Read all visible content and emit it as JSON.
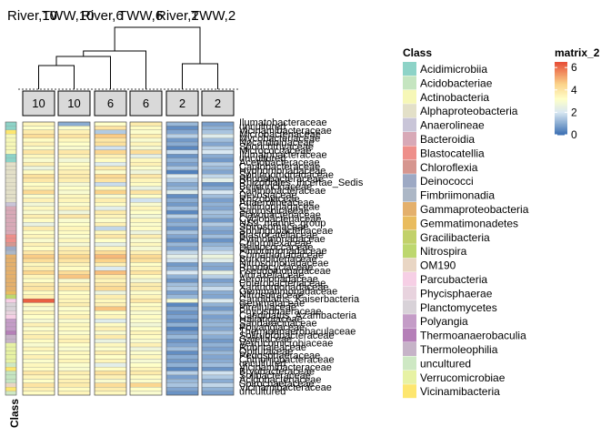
{
  "chart_data": {
    "type": "heatmap",
    "column_titles": [
      "River,10",
      "TWW,10",
      "River,6",
      "TWW,6",
      "River,2",
      "TWW,2"
    ],
    "column_clusters": [
      "10",
      "10",
      "6",
      "6",
      "2",
      "2"
    ],
    "row_annotation_label": "Class",
    "class_legend": {
      "title": "Class",
      "entries": [
        {
          "name": "Acidimicrobiia",
          "color": "#8DD3C7"
        },
        {
          "name": "Acidobacteriae",
          "color": "#C5E5C0"
        },
        {
          "name": "Actinobacteria",
          "color": "#F6F7B7"
        },
        {
          "name": "Alphaproteobacteria",
          "color": "#E3E0C8"
        },
        {
          "name": "Anaerolineae",
          "color": "#C9C5D8"
        },
        {
          "name": "Bacteroidia",
          "color": "#D8A9B7"
        },
        {
          "name": "Blastocatellia",
          "color": "#EE8F8A"
        },
        {
          "name": "Chloroflexia",
          "color": "#D6968F"
        },
        {
          "name": "Deinococci",
          "color": "#9DA9C4"
        },
        {
          "name": "Fimbriimonadia",
          "color": "#ACB7C6"
        },
        {
          "name": "Gammaproteobacteria",
          "color": "#E4B06C"
        },
        {
          "name": "Gemmatimonadetes",
          "color": "#E9BC5E"
        },
        {
          "name": "Gracilibacteria",
          "color": "#C2D16A"
        },
        {
          "name": "Nitrospira",
          "color": "#BDD76E"
        },
        {
          "name": "OM190",
          "color": "#E9D6C4"
        },
        {
          "name": "Parcubacteria",
          "color": "#F6CFE5"
        },
        {
          "name": "Phycisphaerae",
          "color": "#E8D3DE"
        },
        {
          "name": "Planctomycetes",
          "color": "#D8D2D8"
        },
        {
          "name": "Polyangia",
          "color": "#C49CC7"
        },
        {
          "name": "Thermoanaerobaculia",
          "color": "#B57FB8"
        },
        {
          "name": "Thermoleophilia",
          "color": "#C6B3C8"
        },
        {
          "name": "uncultured",
          "color": "#CEE8C4"
        },
        {
          "name": "Verrucomicrobiae",
          "color": "#E7F2A4"
        },
        {
          "name": "Vicinamibacteria",
          "color": "#FDE66F"
        }
      ]
    },
    "color_scale": {
      "title": "matrix_2",
      "min": 0,
      "max": 6.5,
      "ticks": [
        0,
        2,
        4,
        6
      ],
      "stops": [
        {
          "value": 0,
          "color": "#3A6FB2"
        },
        {
          "value": 2,
          "color": "#D9E8F2"
        },
        {
          "value": 3.2,
          "color": "#FFFFC8"
        },
        {
          "value": 4.5,
          "color": "#FBD38A"
        },
        {
          "value": 6.5,
          "color": "#E64B35"
        }
      ]
    },
    "row_labels": [
      "Ilumatobacteraceae",
      "uncultured",
      "Vicinamibacteraceae",
      "Microbacteriaceae",
      "Mycobacteriaceae",
      "Nocardioidaceae",
      "Sporichthyaceae",
      "Micrococcaceae",
      "Ilumatobacteraceae",
      "uncultured",
      "Acetobacteraceae",
      "Caulobacteraceae",
      "Hyphomonadaceae",
      "Sphingomonadaceae",
      "Rhodobacteraceae",
      "Rhizobiales_Incertae_Sedis",
      "Beijerinckiaceae",
      "Xanthobacteraceae",
      "Devosiaceae",
      "Rhizobiaceae",
      "Anaerolineaceae",
      "Chitinophagaceae",
      "Saprospiraceae",
      "Flavobacteriaceae",
      "Cyclobacteriaceae",
      "NS9_marine_group",
      "Spirosomaceae",
      "Sphingobacteriaceae",
      "Blastocatellaceae",
      "Pyrinomonadaceae",
      "Chloroflexaceae",
      "Deinococcaceae",
      "Fimbriimonadaceae",
      "Comamonadaceae",
      "Burkholderiaceae",
      "Nitrosomonadaceae",
      "Rhodocyclaceae",
      "Pseudomonadaceae",
      "Moraxellaceae",
      "Aeromonadaceae",
      "Enterobacteriaceae",
      "Xanthomonadaceae",
      "Gemmatimonadaceae",
      "Nitrospiraceae",
      "Candidatus_Kaiserbacteria",
      "Gemmataceae",
      "Pirellulaceae",
      "Phycisphaeraceae",
      "Candidatus_Azambacteria",
      "Haliangiaceae",
      "Sandaracinaceae",
      "Polyangiaceae",
      "Thermoanaerobaculaceae",
      "Solirubrobacteraceae",
      "Gaiellaceae",
      "Verrucomicrobiaceae",
      "Rubritaleaceae",
      "Opitutaceae",
      "Pedosphaeraceae",
      "Chthoniobacteraceae",
      "uncultured",
      "Vicinamibacteraceae",
      "Bryobacteraceae",
      "Solibacteraceae",
      "Acidobacteriaceae",
      "Spirochaetaceae",
      "Vicinamibacteraceae",
      "uncultured"
    ],
    "row_class_index": [
      0,
      0,
      23,
      2,
      2,
      2,
      2,
      2,
      0,
      0,
      3,
      3,
      3,
      3,
      3,
      3,
      3,
      3,
      3,
      3,
      4,
      5,
      5,
      5,
      5,
      5,
      5,
      5,
      6,
      6,
      7,
      8,
      9,
      10,
      10,
      10,
      10,
      10,
      10,
      10,
      10,
      10,
      11,
      13,
      15,
      17,
      17,
      16,
      15,
      18,
      18,
      18,
      19,
      20,
      20,
      22,
      22,
      22,
      22,
      22,
      21,
      23,
      1,
      1,
      1,
      14,
      23,
      21
    ],
    "values": [
      [
        3.5,
        1.0,
        3.2,
        3.8,
        1.2,
        0.8
      ],
      [
        3.2,
        3.1,
        4.0,
        3.3,
        0.5,
        1.1
      ],
      [
        3.8,
        3.6,
        1.5,
        3.1,
        0.9,
        1.4
      ],
      [
        4.2,
        4.0,
        4.6,
        3.7,
        1.6,
        2.2
      ],
      [
        3.3,
        3.4,
        3.9,
        3.0,
        0.7,
        1.3
      ],
      [
        3.6,
        3.2,
        4.1,
        3.5,
        1.0,
        0.9
      ],
      [
        3.1,
        3.0,
        1.9,
        2.9,
        0.4,
        1.6
      ],
      [
        4.0,
        3.9,
        4.4,
        4.2,
        1.8,
        2.0
      ],
      [
        3.4,
        3.5,
        3.6,
        2.4,
        0.6,
        1.0
      ],
      [
        3.0,
        2.8,
        3.3,
        3.4,
        1.1,
        0.7
      ],
      [
        3.7,
        3.3,
        2.2,
        3.6,
        0.8,
        1.5
      ],
      [
        2.6,
        3.4,
        3.8,
        3.1,
        1.4,
        1.2
      ],
      [
        3.3,
        3.6,
        3.1,
        2.7,
        0.3,
        0.9
      ],
      [
        4.1,
        3.8,
        4.3,
        3.9,
        2.1,
        1.7
      ],
      [
        3.9,
        3.7,
        4.0,
        3.5,
        1.5,
        2.3
      ],
      [
        3.2,
        2.9,
        1.8,
        3.3,
        0.9,
        0.6
      ],
      [
        3.5,
        3.2,
        3.4,
        2.5,
        1.2,
        1.0
      ],
      [
        4.3,
        3.0,
        4.5,
        4.0,
        2.2,
        2.0
      ],
      [
        3.1,
        3.4,
        3.0,
        3.2,
        0.5,
        1.3
      ],
      [
        3.6,
        3.5,
        3.7,
        1.9,
        1.0,
        0.8
      ],
      [
        2.8,
        3.1,
        3.3,
        3.0,
        0.7,
        1.1
      ],
      [
        3.4,
        3.6,
        2.3,
        3.5,
        1.3,
        0.9
      ],
      [
        3.0,
        2.7,
        3.8,
        3.2,
        0.4,
        1.4
      ],
      [
        3.7,
        3.9,
        3.5,
        2.8,
        1.6,
        1.2
      ],
      [
        3.3,
        3.0,
        3.1,
        3.4,
        0.8,
        0.7
      ],
      [
        2.5,
        3.2,
        3.6,
        3.1,
        1.1,
        1.5
      ],
      [
        3.8,
        3.5,
        1.7,
        3.3,
        0.6,
        1.0
      ],
      [
        3.2,
        3.3,
        3.4,
        2.6,
        1.4,
        0.8
      ],
      [
        3.5,
        3.1,
        3.9,
        3.7,
        0.9,
        1.3
      ],
      [
        3.0,
        3.4,
        3.2,
        3.0,
        0.5,
        0.6
      ],
      [
        3.6,
        2.9,
        2.4,
        3.4,
        1.2,
        1.1
      ],
      [
        3.3,
        3.6,
        3.5,
        2.9,
        0.8,
        1.4
      ],
      [
        3.9,
        3.8,
        4.2,
        3.6,
        1.7,
        1.9
      ],
      [
        4.6,
        4.4,
        4.9,
        4.3,
        2.3,
        2.6
      ],
      [
        4.2,
        4.0,
        4.5,
        4.1,
        1.9,
        2.2
      ],
      [
        3.4,
        3.5,
        3.6,
        3.2,
        0.7,
        1.0
      ],
      [
        3.7,
        3.3,
        2.1,
        3.5,
        1.0,
        0.9
      ],
      [
        4.4,
        4.2,
        4.8,
        4.0,
        2.0,
        2.4
      ],
      [
        3.5,
        4.7,
        3.8,
        3.3,
        1.1,
        1.6
      ],
      [
        3.2,
        3.0,
        3.5,
        2.8,
        0.6,
        0.8
      ],
      [
        3.8,
        3.6,
        3.9,
        3.7,
        1.3,
        1.2
      ],
      [
        4.0,
        3.9,
        4.3,
        3.8,
        1.5,
        1.8
      ],
      [
        3.3,
        3.2,
        2.6,
        3.1,
        0.8,
        1.0
      ],
      [
        3.6,
        3.4,
        3.7,
        3.5,
        1.2,
        0.9
      ],
      [
        6.2,
        3.5,
        3.4,
        3.9,
        2.9,
        2.1
      ],
      [
        3.4,
        3.7,
        3.6,
        3.2,
        0.4,
        1.1
      ],
      [
        3.0,
        3.1,
        4.7,
        3.4,
        1.0,
        0.7
      ],
      [
        3.5,
        3.3,
        3.2,
        3.0,
        0.6,
        1.3
      ],
      [
        3.2,
        3.6,
        3.5,
        3.3,
        0.9,
        0.8
      ],
      [
        2.9,
        3.0,
        2.2,
        3.1,
        0.5,
        1.0
      ],
      [
        3.6,
        3.4,
        3.3,
        2.8,
        1.1,
        1.2
      ],
      [
        3.1,
        3.3,
        3.6,
        3.2,
        0.3,
        0.9
      ],
      [
        3.4,
        3.1,
        3.0,
        3.5,
        0.8,
        1.4
      ],
      [
        3.7,
        3.5,
        3.8,
        3.3,
        1.2,
        1.0
      ],
      [
        3.3,
        3.6,
        2.5,
        3.0,
        0.6,
        0.7
      ],
      [
        3.0,
        3.2,
        3.4,
        3.6,
        0.9,
        1.1
      ],
      [
        3.5,
        3.0,
        3.1,
        2.7,
        1.3,
        0.8
      ],
      [
        3.2,
        3.4,
        3.7,
        3.1,
        0.5,
        1.2
      ],
      [
        3.6,
        3.3,
        3.2,
        3.4,
        1.0,
        0.9
      ],
      [
        3.1,
        3.5,
        3.5,
        2.9,
        0.7,
        1.0
      ],
      [
        3.4,
        3.1,
        2.3,
        3.2,
        1.1,
        1.3
      ],
      [
        3.3,
        3.0,
        3.3,
        3.5,
        0.4,
        0.6
      ],
      [
        3.9,
        3.7,
        4.1,
        3.8,
        1.6,
        1.9
      ],
      [
        3.5,
        3.4,
        3.6,
        3.3,
        0.8,
        1.5
      ],
      [
        3.2,
        3.6,
        3.0,
        3.1,
        1.2,
        1.0
      ],
      [
        4.0,
        3.8,
        4.2,
        4.4,
        1.4,
        1.7
      ],
      [
        3.6,
        3.3,
        3.7,
        3.2,
        0.9,
        1.1
      ],
      [
        3.3,
        3.5,
        3.4,
        3.0,
        0.6,
        0.8
      ]
    ]
  }
}
